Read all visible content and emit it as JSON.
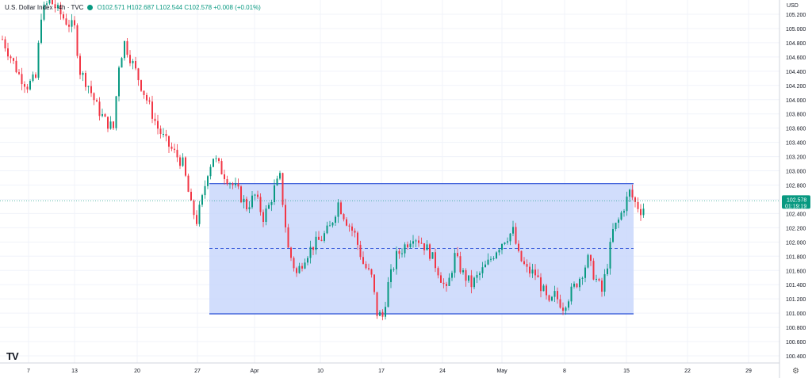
{
  "legend": {
    "symbol": "U.S. Dollar Index · 4h · TVC",
    "ohlc": "O102.571 H102.687 L102.544 C102.578 +0.008 (+0.01%)"
  },
  "price_axis": {
    "currency": "USD",
    "settings_icon": "gear-icon"
  },
  "logo": "TV",
  "colors": {
    "up": "#089981",
    "down": "#f23645",
    "range_fill": "#c6d4fb",
    "range_line": "#2a4fd6",
    "last_badge": "#089981"
  },
  "chart_data": {
    "type": "candlestick",
    "title": "U.S. Dollar Index",
    "interval": "4h",
    "source": "TVC",
    "x_ticks": [
      "7",
      "13",
      "20",
      "27",
      "Apr",
      "10",
      "17",
      "24",
      "May",
      "8",
      "15",
      "22",
      "29"
    ],
    "y_ticks": [
      "105.200",
      "105.000",
      "104.800",
      "104.600",
      "104.400",
      "104.200",
      "104.000",
      "103.800",
      "103.600",
      "103.400",
      "103.200",
      "103.000",
      "102.800",
      "102.600",
      "102.400",
      "102.200",
      "102.000",
      "101.800",
      "101.600",
      "101.400",
      "101.200",
      "101.000",
      "100.800",
      "100.600",
      "100.400"
    ],
    "ylim": [
      100.3,
      105.45
    ],
    "last_price": "102.578",
    "countdown": "01:19:19",
    "range_box": {
      "top": 102.82,
      "bottom": 100.99,
      "mid": 101.91
    },
    "close_path": [
      [
        0,
        104.85
      ],
      [
        3,
        104.6
      ],
      [
        6,
        104.35
      ],
      [
        9,
        104.2
      ],
      [
        12,
        104.3
      ],
      [
        14,
        105.2
      ],
      [
        17,
        105.4
      ],
      [
        20,
        105.25
      ],
      [
        23,
        105.1
      ],
      [
        26,
        105.0
      ],
      [
        28,
        104.4
      ],
      [
        31,
        104.2
      ],
      [
        34,
        103.9
      ],
      [
        37,
        103.7
      ],
      [
        40,
        103.6
      ],
      [
        42,
        104.5
      ],
      [
        44,
        104.8
      ],
      [
        47,
        104.5
      ],
      [
        50,
        104.2
      ],
      [
        53,
        103.9
      ],
      [
        56,
        103.6
      ],
      [
        59,
        103.4
      ],
      [
        62,
        103.25
      ],
      [
        65,
        103.1
      ],
      [
        68,
        102.5
      ],
      [
        70,
        102.3
      ],
      [
        72,
        102.6
      ],
      [
        74,
        103.0
      ],
      [
        76,
        103.2
      ],
      [
        79,
        103.0
      ],
      [
        82,
        102.85
      ],
      [
        85,
        102.7
      ],
      [
        88,
        102.5
      ],
      [
        91,
        102.65
      ],
      [
        94,
        102.35
      ],
      [
        96,
        102.5
      ],
      [
        98,
        102.75
      ],
      [
        100,
        102.9
      ],
      [
        103,
        101.9
      ],
      [
        106,
        101.55
      ],
      [
        109,
        101.8
      ],
      [
        112,
        101.95
      ],
      [
        115,
        102.05
      ],
      [
        118,
        102.2
      ],
      [
        121,
        102.55
      ],
      [
        124,
        102.3
      ],
      [
        127,
        102.1
      ],
      [
        130,
        101.7
      ],
      [
        133,
        101.5
      ],
      [
        135,
        101.0
      ],
      [
        137,
        100.95
      ],
      [
        139,
        101.4
      ],
      [
        142,
        101.8
      ],
      [
        145,
        101.95
      ],
      [
        148,
        102.1
      ],
      [
        151,
        102.0
      ],
      [
        154,
        101.85
      ],
      [
        157,
        101.6
      ],
      [
        160,
        101.3
      ],
      [
        163,
        101.8
      ],
      [
        166,
        101.55
      ],
      [
        169,
        101.4
      ],
      [
        172,
        101.55
      ],
      [
        175,
        101.7
      ],
      [
        178,
        101.9
      ],
      [
        181,
        102.05
      ],
      [
        184,
        102.15
      ],
      [
        186,
        101.8
      ],
      [
        189,
        101.6
      ],
      [
        192,
        101.55
      ],
      [
        195,
        101.3
      ],
      [
        197,
        101.1
      ],
      [
        199,
        101.25
      ],
      [
        202,
        101.1
      ],
      [
        205,
        101.3
      ],
      [
        208,
        101.5
      ],
      [
        211,
        101.75
      ],
      [
        213,
        101.55
      ],
      [
        216,
        101.3
      ],
      [
        218,
        101.7
      ],
      [
        220,
        102.15
      ],
      [
        222,
        102.3
      ],
      [
        224,
        102.5
      ],
      [
        226,
        102.7
      ],
      [
        228,
        102.55
      ],
      [
        230,
        102.45
      ],
      [
        232,
        102.52
      ]
    ]
  }
}
